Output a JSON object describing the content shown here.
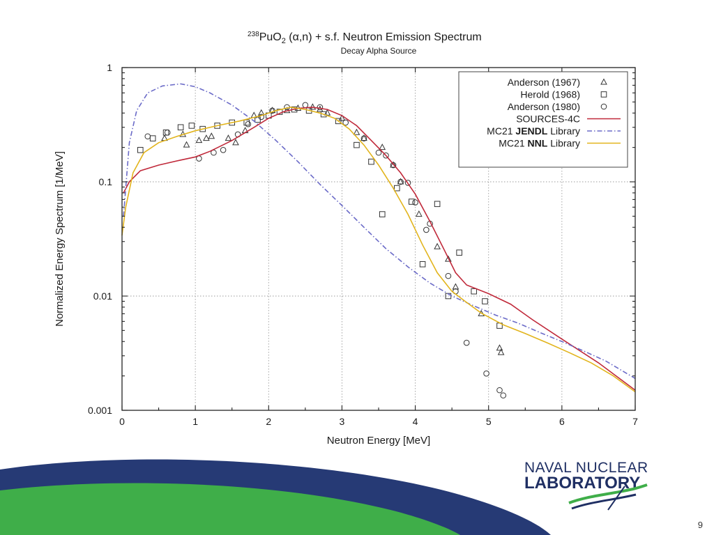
{
  "slide": {
    "page_number": "9"
  },
  "logo": {
    "line1": "NAVAL NUCLEAR",
    "line2": "LABORATORY"
  },
  "colors": {
    "sources_4c": "#c0293a",
    "jendl": "#6b6bc8",
    "nnl": "#e2b41c",
    "footer_navy": "#263a75",
    "footer_green": "#3fae49",
    "logo_navy": "#1f2f63"
  },
  "chart_data": {
    "type": "line",
    "title_prefix_sup": "238",
    "title_main": "PuO",
    "title_sub": "2",
    "title_rest": " (α,n) + s.f. Neutron Emission Spectrum",
    "subtitle": "Decay Alpha Source",
    "xlabel": "Neutron Energy [MeV]",
    "ylabel": "Normalized Energy Spectrum [1/MeV]",
    "xlim": [
      0,
      7
    ],
    "ylim": [
      0.001,
      1
    ],
    "yscale": "log",
    "grid": true,
    "legend_position": "top-right",
    "x_ticks": [
      "0",
      "1",
      "2",
      "3",
      "4",
      "5",
      "6",
      "7"
    ],
    "y_ticks": [
      "1",
      "0.1",
      "0.01",
      "0.001"
    ],
    "series": [
      {
        "name": "Anderson (1967)",
        "kind": "scatter",
        "marker": "triangle",
        "points": [
          [
            0.58,
            0.24
          ],
          [
            0.83,
            0.26
          ],
          [
            0.88,
            0.21
          ],
          [
            1.05,
            0.23
          ],
          [
            1.15,
            0.24
          ],
          [
            1.22,
            0.25
          ],
          [
            1.45,
            0.24
          ],
          [
            1.55,
            0.22
          ],
          [
            1.68,
            0.28
          ],
          [
            1.8,
            0.38
          ],
          [
            1.9,
            0.4
          ],
          [
            2.05,
            0.42
          ],
          [
            2.25,
            0.42
          ],
          [
            2.4,
            0.44
          ],
          [
            2.6,
            0.45
          ],
          [
            2.7,
            0.43
          ],
          [
            2.8,
            0.4
          ],
          [
            3.0,
            0.36
          ],
          [
            3.2,
            0.27
          ],
          [
            3.3,
            0.24
          ],
          [
            3.55,
            0.2
          ],
          [
            3.7,
            0.14
          ],
          [
            3.8,
            0.1
          ],
          [
            4.05,
            0.052
          ],
          [
            4.3,
            0.027
          ],
          [
            4.45,
            0.021
          ],
          [
            4.55,
            0.012
          ],
          [
            4.9,
            0.007
          ],
          [
            5.15,
            0.0035
          ],
          [
            5.17,
            0.0032
          ]
        ]
      },
      {
        "name": "Herold (1968)",
        "kind": "scatter",
        "marker": "square",
        "points": [
          [
            0.25,
            0.19
          ],
          [
            0.42,
            0.24
          ],
          [
            0.6,
            0.27
          ],
          [
            0.8,
            0.3
          ],
          [
            0.95,
            0.31
          ],
          [
            1.1,
            0.29
          ],
          [
            1.3,
            0.31
          ],
          [
            1.5,
            0.33
          ],
          [
            1.7,
            0.33
          ],
          [
            1.85,
            0.35
          ],
          [
            2.0,
            0.38
          ],
          [
            2.15,
            0.41
          ],
          [
            2.35,
            0.43
          ],
          [
            2.55,
            0.42
          ],
          [
            2.75,
            0.39
          ],
          [
            2.95,
            0.34
          ],
          [
            3.2,
            0.21
          ],
          [
            3.4,
            0.15
          ],
          [
            3.55,
            0.052
          ],
          [
            3.75,
            0.088
          ],
          [
            3.95,
            0.067
          ],
          [
            4.1,
            0.019
          ],
          [
            4.3,
            0.064
          ],
          [
            4.45,
            0.01
          ],
          [
            4.6,
            0.024
          ],
          [
            4.8,
            0.011
          ],
          [
            4.95,
            0.009
          ],
          [
            5.15,
            0.0055
          ]
        ]
      },
      {
        "name": "Anderson (1980)",
        "kind": "scatter",
        "marker": "circle",
        "points": [
          [
            0.35,
            0.25
          ],
          [
            0.62,
            0.27
          ],
          [
            1.05,
            0.16
          ],
          [
            1.25,
            0.18
          ],
          [
            1.38,
            0.19
          ],
          [
            1.58,
            0.26
          ],
          [
            1.72,
            0.32
          ],
          [
            1.9,
            0.37
          ],
          [
            2.05,
            0.42
          ],
          [
            2.25,
            0.45
          ],
          [
            2.5,
            0.47
          ],
          [
            2.7,
            0.45
          ],
          [
            3.05,
            0.33
          ],
          [
            3.3,
            0.24
          ],
          [
            3.5,
            0.18
          ],
          [
            3.6,
            0.17
          ],
          [
            3.7,
            0.14
          ],
          [
            3.8,
            0.1
          ],
          [
            3.9,
            0.098
          ],
          [
            4.0,
            0.066
          ],
          [
            4.15,
            0.038
          ],
          [
            4.2,
            0.043
          ],
          [
            4.45,
            0.015
          ],
          [
            4.55,
            0.011
          ],
          [
            4.7,
            0.0039
          ],
          [
            4.97,
            0.0021
          ],
          [
            5.15,
            0.0015
          ],
          [
            5.2,
            0.00135
          ]
        ]
      },
      {
        "name": "SOURCES-4C",
        "kind": "line",
        "color_key": "sources_4c",
        "points": [
          [
            0.02,
            0.08
          ],
          [
            0.1,
            0.1
          ],
          [
            0.25,
            0.125
          ],
          [
            0.5,
            0.14
          ],
          [
            0.8,
            0.155
          ],
          [
            1.0,
            0.165
          ],
          [
            1.2,
            0.185
          ],
          [
            1.5,
            0.23
          ],
          [
            1.8,
            0.3
          ],
          [
            2.0,
            0.36
          ],
          [
            2.2,
            0.41
          ],
          [
            2.4,
            0.44
          ],
          [
            2.6,
            0.45
          ],
          [
            2.8,
            0.43
          ],
          [
            3.0,
            0.38
          ],
          [
            3.2,
            0.31
          ],
          [
            3.4,
            0.23
          ],
          [
            3.6,
            0.17
          ],
          [
            3.8,
            0.12
          ],
          [
            4.0,
            0.078
          ],
          [
            4.2,
            0.045
          ],
          [
            4.4,
            0.025
          ],
          [
            4.55,
            0.016
          ],
          [
            4.7,
            0.0125
          ],
          [
            5.0,
            0.0105
          ],
          [
            5.3,
            0.0085
          ],
          [
            5.6,
            0.0062
          ],
          [
            6.0,
            0.0042
          ],
          [
            6.5,
            0.0026
          ],
          [
            7.0,
            0.0015
          ]
        ]
      },
      {
        "name": "MC21 JENDL Library",
        "kind": "line",
        "style": "dashdot",
        "color_key": "jendl",
        "points": [
          [
            0.02,
            0.05
          ],
          [
            0.1,
            0.22
          ],
          [
            0.2,
            0.42
          ],
          [
            0.35,
            0.6
          ],
          [
            0.55,
            0.69
          ],
          [
            0.8,
            0.72
          ],
          [
            1.0,
            0.68
          ],
          [
            1.2,
            0.6
          ],
          [
            1.5,
            0.47
          ],
          [
            1.8,
            0.34
          ],
          [
            2.1,
            0.23
          ],
          [
            2.4,
            0.15
          ],
          [
            2.7,
            0.095
          ],
          [
            3.0,
            0.062
          ],
          [
            3.3,
            0.04
          ],
          [
            3.6,
            0.026
          ],
          [
            3.9,
            0.018
          ],
          [
            4.2,
            0.013
          ],
          [
            4.5,
            0.01
          ],
          [
            4.8,
            0.0082
          ],
          [
            5.1,
            0.0068
          ],
          [
            5.4,
            0.0058
          ],
          [
            5.7,
            0.0048
          ],
          [
            6.0,
            0.004
          ],
          [
            6.3,
            0.0033
          ],
          [
            6.6,
            0.0027
          ],
          [
            7.0,
            0.0019
          ]
        ]
      },
      {
        "name": "MC21 NNL Library",
        "kind": "line",
        "color_key": "nnl",
        "points": [
          [
            0.0,
            0.034
          ],
          [
            0.05,
            0.06
          ],
          [
            0.15,
            0.12
          ],
          [
            0.3,
            0.18
          ],
          [
            0.5,
            0.22
          ],
          [
            0.75,
            0.25
          ],
          [
            1.0,
            0.28
          ],
          [
            1.3,
            0.31
          ],
          [
            1.6,
            0.34
          ],
          [
            1.9,
            0.38
          ],
          [
            2.1,
            0.42
          ],
          [
            2.3,
            0.45
          ],
          [
            2.5,
            0.43
          ],
          [
            2.7,
            0.4
          ],
          [
            2.9,
            0.36
          ],
          [
            3.1,
            0.29
          ],
          [
            3.3,
            0.21
          ],
          [
            3.5,
            0.14
          ],
          [
            3.7,
            0.088
          ],
          [
            3.9,
            0.052
          ],
          [
            4.1,
            0.028
          ],
          [
            4.3,
            0.016
          ],
          [
            4.5,
            0.011
          ],
          [
            4.7,
            0.0088
          ],
          [
            4.9,
            0.0071
          ],
          [
            5.2,
            0.0056
          ],
          [
            5.5,
            0.0047
          ],
          [
            5.8,
            0.0039
          ],
          [
            6.1,
            0.0032
          ],
          [
            6.4,
            0.0026
          ],
          [
            6.7,
            0.002
          ],
          [
            7.0,
            0.00145
          ]
        ]
      }
    ],
    "legend": [
      {
        "label": "Anderson (1967)",
        "marker": "triangle"
      },
      {
        "label": "Herold (1968)",
        "marker": "square"
      },
      {
        "label": "Anderson (1980)",
        "marker": "circle"
      },
      {
        "label": "SOURCES-4C",
        "line_color_key": "sources_4c",
        "style": "solid"
      },
      {
        "label_prefix": "MC21",
        "label_bold": "JENDL",
        "label_suffix": "Library",
        "line_color_key": "jendl",
        "style": "dashdot"
      },
      {
        "label_prefix": "MC21",
        "label_bold": "NNL",
        "label_suffix": "Library",
        "line_color_key": "nnl",
        "style": "solid"
      }
    ]
  }
}
